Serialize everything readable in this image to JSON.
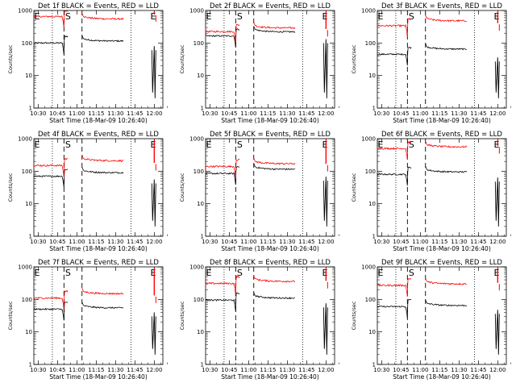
{
  "chart_data": {
    "type": "line",
    "common": {
      "xlabel": "Start Time (18-Mar-09 10:26:40)",
      "ylabel": "Counts/sec",
      "y_scale": "log",
      "ylim": [
        1,
        1000
      ],
      "y_ticks": [
        {
          "value": 1,
          "label": "1"
        },
        {
          "value": 10,
          "label": "10"
        },
        {
          "value": 100,
          "label": "100"
        },
        {
          "value": 1000,
          "label": "1000"
        }
      ],
      "x_range": [
        "10:26:40",
        "12:06:40"
      ],
      "x_ticks": [
        "10:30",
        "10:45",
        "11:00",
        "11:15",
        "11:30",
        "11:45",
        "12:00"
      ],
      "dotted_lines_at": [
        "10:41",
        "11:42"
      ],
      "dashed_lines_at": [
        "10:50",
        "11:04"
      ],
      "markers": [
        {
          "label": "E",
          "at": "10:27"
        },
        {
          "label": "S",
          "at": "10:51"
        },
        {
          "label": "E",
          "at": "11:57"
        }
      ]
    },
    "panels": [
      {
        "title": "Det 1f BLACK = Events, RED = LLD",
        "series": [
          {
            "legend_label": "BLACK = Events",
            "color": "#000000",
            "seg1_level": 100,
            "seg2_level": 115
          },
          {
            "legend_label": "RED = LLD",
            "color": "#ff0000",
            "seg1_level": 650,
            "seg2_level": 550
          }
        ]
      },
      {
        "title": "Det 2f BLACK = Events, RED = LLD",
        "series": [
          {
            "legend_label": "BLACK = Events",
            "color": "#000000",
            "seg1_level": 165,
            "seg2_level": 220
          },
          {
            "legend_label": "RED = LLD",
            "color": "#ff0000",
            "seg1_level": 225,
            "seg2_level": 290
          }
        ]
      },
      {
        "title": "Det 3f BLACK = Events, RED = LLD",
        "series": [
          {
            "legend_label": "BLACK = Events",
            "color": "#000000",
            "seg1_level": 45,
            "seg2_level": 65
          },
          {
            "legend_label": "RED = LLD",
            "color": "#ff0000",
            "seg1_level": 340,
            "seg2_level": 480
          }
        ]
      },
      {
        "title": "Det 4f BLACK = Events, RED = LLD",
        "series": [
          {
            "legend_label": "BLACK = Events",
            "color": "#000000",
            "seg1_level": 70,
            "seg2_level": 90
          },
          {
            "legend_label": "RED = LLD",
            "color": "#ff0000",
            "seg1_level": 150,
            "seg2_level": 210
          }
        ]
      },
      {
        "title": "Det 5f BLACK = Events, RED = LLD",
        "series": [
          {
            "legend_label": "BLACK = Events",
            "color": "#000000",
            "seg1_level": 85,
            "seg2_level": 115
          },
          {
            "legend_label": "RED = LLD",
            "color": "#ff0000",
            "seg1_level": 140,
            "seg2_level": 170
          }
        ]
      },
      {
        "title": "Det 6f BLACK = Events, RED = LLD",
        "series": [
          {
            "legend_label": "BLACK = Events",
            "color": "#000000",
            "seg1_level": 80,
            "seg2_level": 95
          },
          {
            "legend_label": "RED = LLD",
            "color": "#ff0000",
            "seg1_level": 500,
            "seg2_level": 560
          }
        ]
      },
      {
        "title": "Det 7f BLACK = Events, RED = LLD",
        "series": [
          {
            "legend_label": "BLACK = Events",
            "color": "#000000",
            "seg1_level": 50,
            "seg2_level": 55
          },
          {
            "legend_label": "RED = LLD",
            "color": "#ff0000",
            "seg1_level": 110,
            "seg2_level": 150
          }
        ]
      },
      {
        "title": "Det 8f BLACK = Events, RED = LLD",
        "series": [
          {
            "legend_label": "BLACK = Events",
            "color": "#000000",
            "seg1_level": 95,
            "seg2_level": 110
          },
          {
            "legend_label": "RED = LLD",
            "color": "#ff0000",
            "seg1_level": 310,
            "seg2_level": 360
          }
        ]
      },
      {
        "title": "Det 9f BLACK = Events, RED = LLD",
        "series": [
          {
            "legend_label": "BLACK = Events",
            "color": "#000000",
            "seg1_level": 60,
            "seg2_level": 65
          },
          {
            "legend_label": "RED = LLD",
            "color": "#ff0000",
            "seg1_level": 270,
            "seg2_level": 300
          }
        ]
      }
    ]
  }
}
